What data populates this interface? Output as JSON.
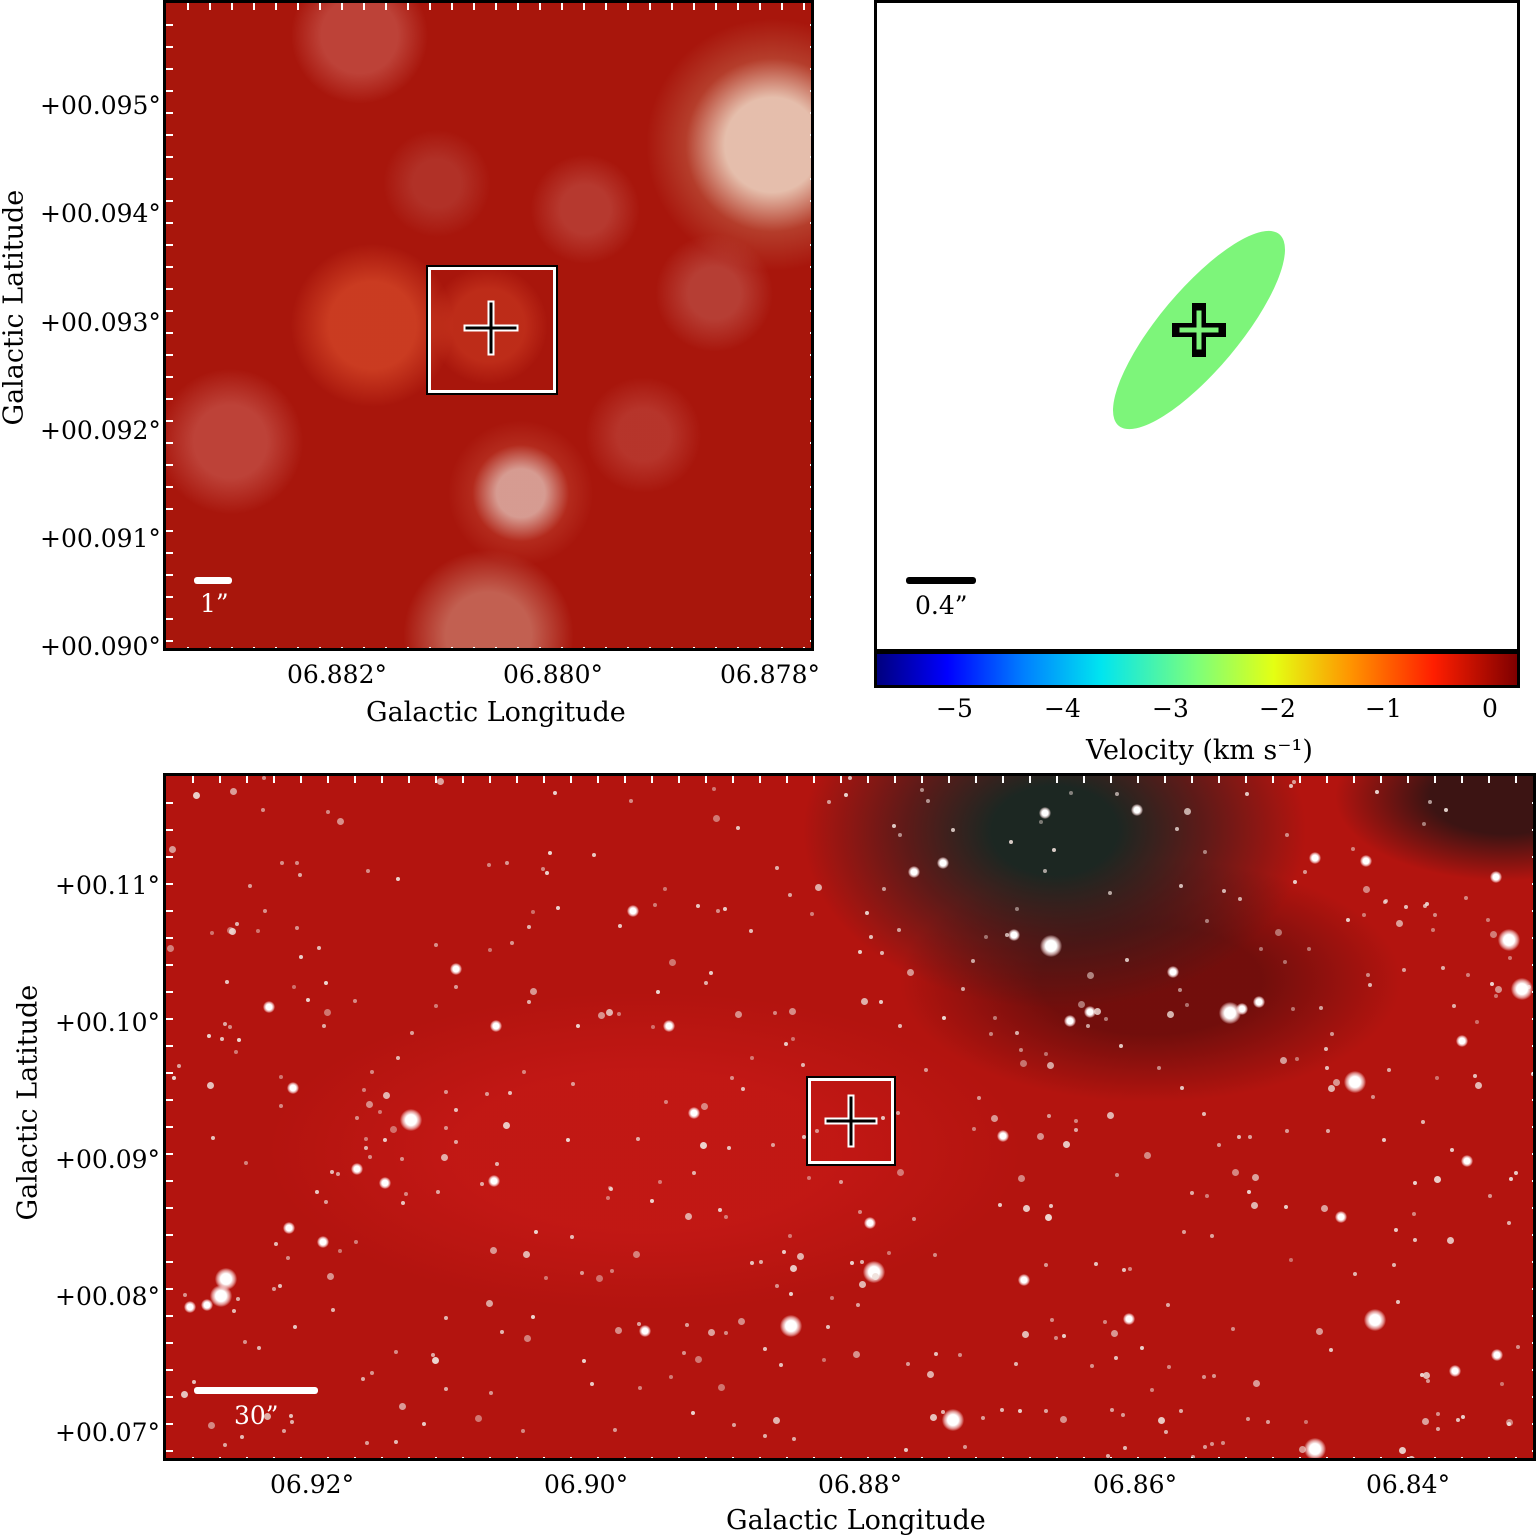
{
  "top_left": {
    "x_ticks": [
      "06.882°",
      "06.880°",
      "06.878°"
    ],
    "y_ticks": [
      "+00.095°",
      "+00.094°",
      "+00.093°",
      "+00.092°",
      "+00.091°",
      "+00.090°"
    ],
    "xlabel": "Galactic Longitude",
    "ylabel": "Galactic Latitude",
    "scalebar_label": "1”"
  },
  "top_right": {
    "scalebar_label": "0.4”",
    "ellipse_color": "#7df57a",
    "colorbar": {
      "ticks": [
        "−5",
        "−4",
        "−3",
        "−2",
        "−1",
        "0"
      ],
      "label": "Velocity (km s⁻¹)",
      "colormap": "jet"
    }
  },
  "bottom": {
    "x_ticks": [
      "06.92°",
      "06.90°",
      "06.88°",
      "06.86°",
      "06.84°"
    ],
    "y_ticks": [
      "+00.11°",
      "+00.10°",
      "+00.09°",
      "+00.08°",
      "+00.07°"
    ],
    "xlabel": "Galactic Longitude",
    "ylabel": "Galactic Latitude",
    "scalebar_label": "30”"
  },
  "colors": {
    "image_background": "#b3140f",
    "marker": "#ffffff"
  }
}
